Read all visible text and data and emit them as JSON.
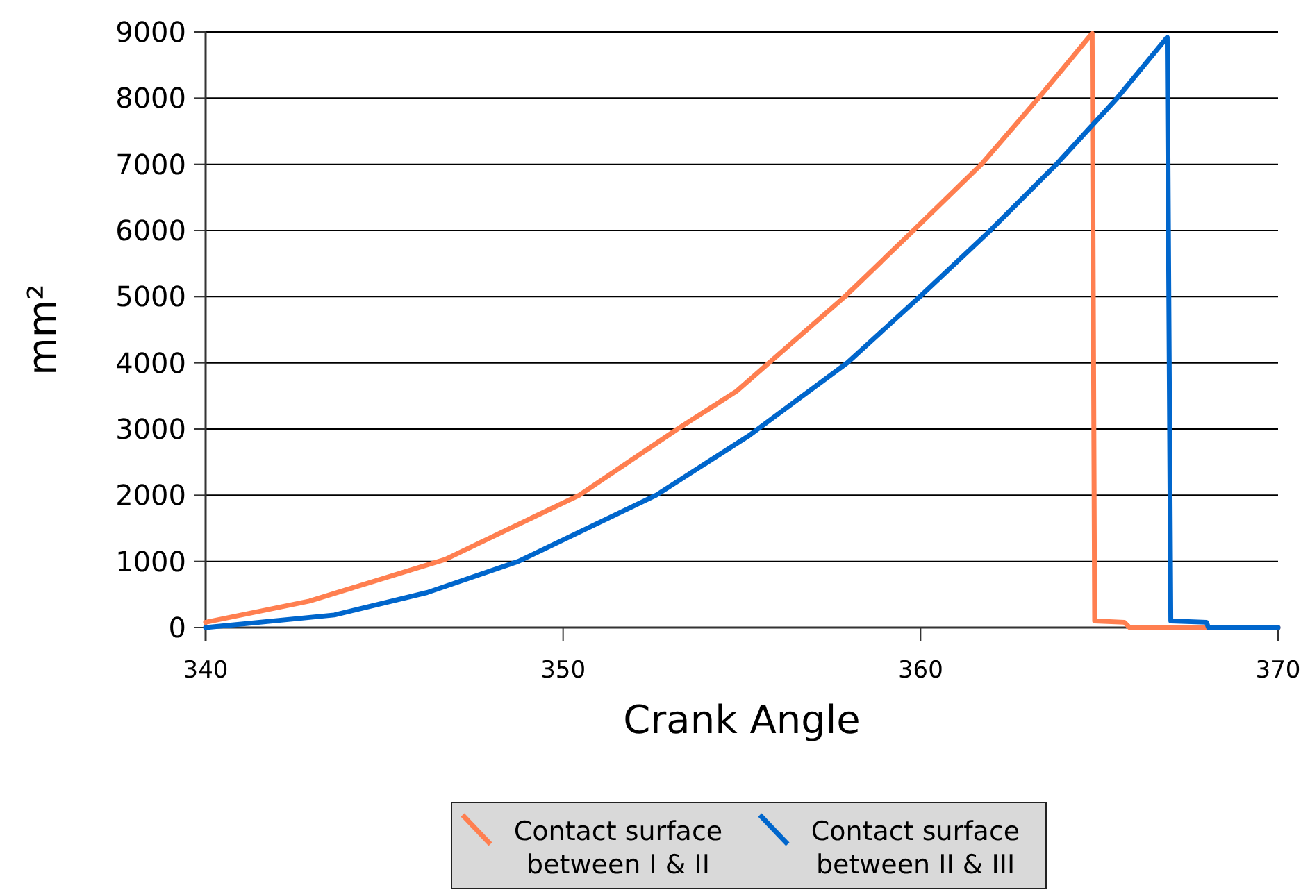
{
  "chart_data": {
    "type": "line",
    "xlabel": "Crank Angle",
    "ylabel": "mm²",
    "xlim": [
      340,
      370
    ],
    "xticks": [
      340,
      350,
      360,
      370
    ],
    "ylim": [
      0,
      9000
    ],
    "yticks": [
      0,
      1000,
      2000,
      3000,
      4000,
      5000,
      6000,
      7000,
      8000,
      9000
    ],
    "grid": "y",
    "legend": "bottom",
    "marker": "none",
    "line_style": "solid",
    "series": [
      {
        "name": "Contact surface between I & II",
        "color": "#ff7f50",
        "x": [
          340,
          342.9,
          346.7,
          350.45,
          353.2,
          354.85,
          357.9,
          359.8,
          361.7,
          363.3,
          364.8,
          364.87,
          365.7,
          365.85,
          370
        ],
        "values": [
          80,
          400,
          1030,
          2000,
          3000,
          3570,
          5010,
          6000,
          7000,
          8000,
          8980,
          100,
          80,
          0,
          0
        ]
      },
      {
        "name": "Contact surface between II & III",
        "color": "#0066cc",
        "x": [
          340,
          343.6,
          346.2,
          348.75,
          352.6,
          355.2,
          357.95,
          360,
          361.95,
          363.8,
          365.5,
          366.9,
          367,
          368,
          368.05,
          370
        ],
        "values": [
          0,
          190,
          530,
          1000,
          2000,
          2900,
          4000,
          5010,
          6000,
          7000,
          8000,
          8920,
          100,
          80,
          0,
          0
        ]
      }
    ]
  }
}
